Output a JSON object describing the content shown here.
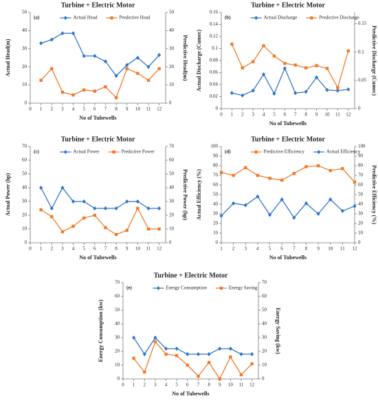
{
  "chart_data": [
    {
      "type": "line",
      "title": "Turbine + Electric Motor",
      "label": "(a)",
      "xlabel": "No of Tubewells",
      "ylabel": "Actual Head(m)",
      "y2label": "Predictive Head(m)",
      "x": [
        1,
        2,
        3,
        4,
        5,
        6,
        7,
        8,
        9,
        10,
        11,
        12
      ],
      "xlim": [
        0,
        12.6
      ],
      "xticks": [
        0,
        1,
        2,
        3,
        4,
        5,
        6,
        7,
        8,
        9,
        10,
        11,
        12
      ],
      "ylim": [
        0,
        50
      ],
      "yticks": [
        0,
        10,
        20,
        30,
        40,
        50
      ],
      "y2lim": [
        0,
        50
      ],
      "y2ticks": [
        0,
        10,
        20,
        30,
        40,
        50
      ],
      "series": [
        {
          "name": "Actual Head",
          "color": "#2e75c8",
          "marker": "diamond",
          "values": [
            33,
            35,
            38.5,
            38.5,
            26,
            26,
            23,
            15,
            21,
            25,
            20,
            26.5
          ]
        },
        {
          "name": "Predictive Head",
          "color": "#f07a2a",
          "marker": "square",
          "axis": "y2",
          "values": [
            12.6,
            19,
            6,
            4.5,
            7.3,
            6.6,
            9,
            3,
            19,
            16.4,
            12.6,
            19
          ]
        }
      ]
    },
    {
      "type": "line",
      "title": "Turbine + Electric Motor",
      "label": "(b)",
      "xlabel": "No of Tubewells",
      "ylabel": "Actual Discharge (Cumec)",
      "y2label": "Predictive Discharge (Cumec)",
      "x": [
        1,
        2,
        3,
        4,
        5,
        6,
        7,
        8,
        9,
        10,
        11,
        12
      ],
      "xlim": [
        0,
        12.6
      ],
      "xticks": [
        0,
        1,
        2,
        3,
        4,
        5,
        6,
        7,
        8,
        9,
        10,
        11,
        12
      ],
      "ylim": [
        0,
        0.16
      ],
      "yticks": [
        0,
        0.02,
        0.04,
        0.06,
        0.08,
        0.1,
        0.12,
        0.14,
        0.16
      ],
      "y2lim": [
        0,
        0.17
      ],
      "y2ticks": [
        0,
        0.05,
        0.1,
        0.15
      ],
      "series": [
        {
          "name": "Actual Discharge",
          "color": "#2e75c8",
          "marker": "diamond",
          "values": [
            0.026,
            0.022,
            0.03,
            0.057,
            0.025,
            0.067,
            0.026,
            0.028,
            0.052,
            0.031,
            0.03,
            0.032
          ]
        },
        {
          "name": "Predictive Discharge",
          "color": "#f07a2a",
          "marker": "square",
          "axis": "y2",
          "values": [
            0.114,
            0.072,
            0.083,
            0.111,
            0.093,
            0.08,
            0.077,
            0.072,
            0.076,
            0.071,
            0.037,
            0.102
          ]
        }
      ]
    },
    {
      "type": "line",
      "title": "Turbine + Electric Motor",
      "label": "(c)",
      "xlabel": "No of Tubewells",
      "ylabel": "Actual Power (hp)",
      "y2label": "Predictive Power (hp)",
      "x": [
        1,
        2,
        3,
        4,
        5,
        6,
        7,
        8,
        9,
        10,
        11,
        12
      ],
      "xlim": [
        0,
        12.6
      ],
      "xticks": [
        0,
        1,
        2,
        3,
        4,
        5,
        6,
        7,
        8,
        9,
        10,
        11,
        12
      ],
      "ylim": [
        0,
        70
      ],
      "yticks": [
        0,
        10,
        20,
        30,
        40,
        50,
        60,
        70
      ],
      "y2lim": [
        0,
        70
      ],
      "y2ticks": [
        0,
        10,
        20,
        30,
        40,
        50,
        60,
        70
      ],
      "series": [
        {
          "name": "Actual Power",
          "color": "#2e75c8",
          "marker": "diamond",
          "values": [
            40,
            25,
            40,
            30,
            30,
            25,
            25,
            25,
            30,
            30,
            25,
            25
          ]
        },
        {
          "name": "Predictive Power",
          "color": "#f07a2a",
          "marker": "square",
          "axis": "y2",
          "values": [
            24,
            19,
            8,
            12,
            18,
            20,
            11,
            6,
            9,
            25,
            10,
            10
          ]
        }
      ]
    },
    {
      "type": "line",
      "title": "Turbine + Electric Motor",
      "label": "(d)",
      "xlabel": "No of Tubewells",
      "ylabel": "Actual Efficiency (%)",
      "y2label": "Predictive Efficiency (%)",
      "x": [
        1,
        2,
        3,
        4,
        5,
        6,
        7,
        8,
        9,
        10,
        11,
        12
      ],
      "xlim": [
        1,
        12
      ],
      "xticks": [
        1,
        2,
        3,
        4,
        5,
        6,
        7,
        8,
        9,
        10,
        11,
        12
      ],
      "ylim": [
        0,
        100
      ],
      "yticks": [
        0,
        10,
        20,
        30,
        40,
        50,
        60,
        70,
        80,
        90,
        100
      ],
      "y2lim": [
        0,
        100
      ],
      "y2ticks": [
        0,
        10,
        20,
        30,
        40,
        50,
        60,
        70,
        80,
        90,
        100
      ],
      "series": [
        {
          "name": "Predictive Efficiency",
          "color": "#f07a2a",
          "marker": "square",
          "axis": "y2",
          "values": [
            73,
            70,
            78,
            70,
            67,
            65,
            72,
            79,
            80,
            75,
            77,
            63
          ]
        },
        {
          "name": "Actual Efficiency",
          "color": "#2e75c8",
          "marker": "diamond",
          "values": [
            28,
            41,
            39,
            48,
            29,
            45,
            26,
            41,
            30,
            45,
            33,
            38
          ]
        }
      ]
    },
    {
      "type": "line",
      "title": "Turbine + Electric Motor",
      "label": "(e)",
      "xlabel": "No of Tubewells",
      "ylabel": "Energy Consumption (kw)",
      "y2label": "Energy Saving (kw)",
      "x": [
        1,
        2,
        3,
        4,
        5,
        6,
        7,
        8,
        9,
        10,
        11,
        12
      ],
      "xlim": [
        0,
        12.6
      ],
      "xticks": [
        0,
        1,
        2,
        3,
        4,
        5,
        6,
        7,
        8,
        9,
        10,
        11,
        12
      ],
      "ylim": [
        0,
        70
      ],
      "yticks": [
        0,
        10,
        20,
        30,
        40,
        50,
        60,
        70
      ],
      "y2lim": [
        0,
        70
      ],
      "y2ticks": [
        0,
        10,
        20,
        30,
        40,
        50,
        60,
        70
      ],
      "series": [
        {
          "name": "Energy Consumption",
          "color": "#2e75c8",
          "marker": "diamond",
          "values": [
            30,
            18,
            30,
            22,
            22,
            18,
            18,
            18,
            22,
            22,
            18,
            18
          ]
        },
        {
          "name": "Energy Saving",
          "color": "#f07a2a",
          "marker": "square",
          "axis": "y2",
          "values": [
            15,
            5,
            27,
            18,
            17,
            10,
            2,
            12,
            0,
            16,
            3,
            11
          ]
        }
      ]
    }
  ]
}
